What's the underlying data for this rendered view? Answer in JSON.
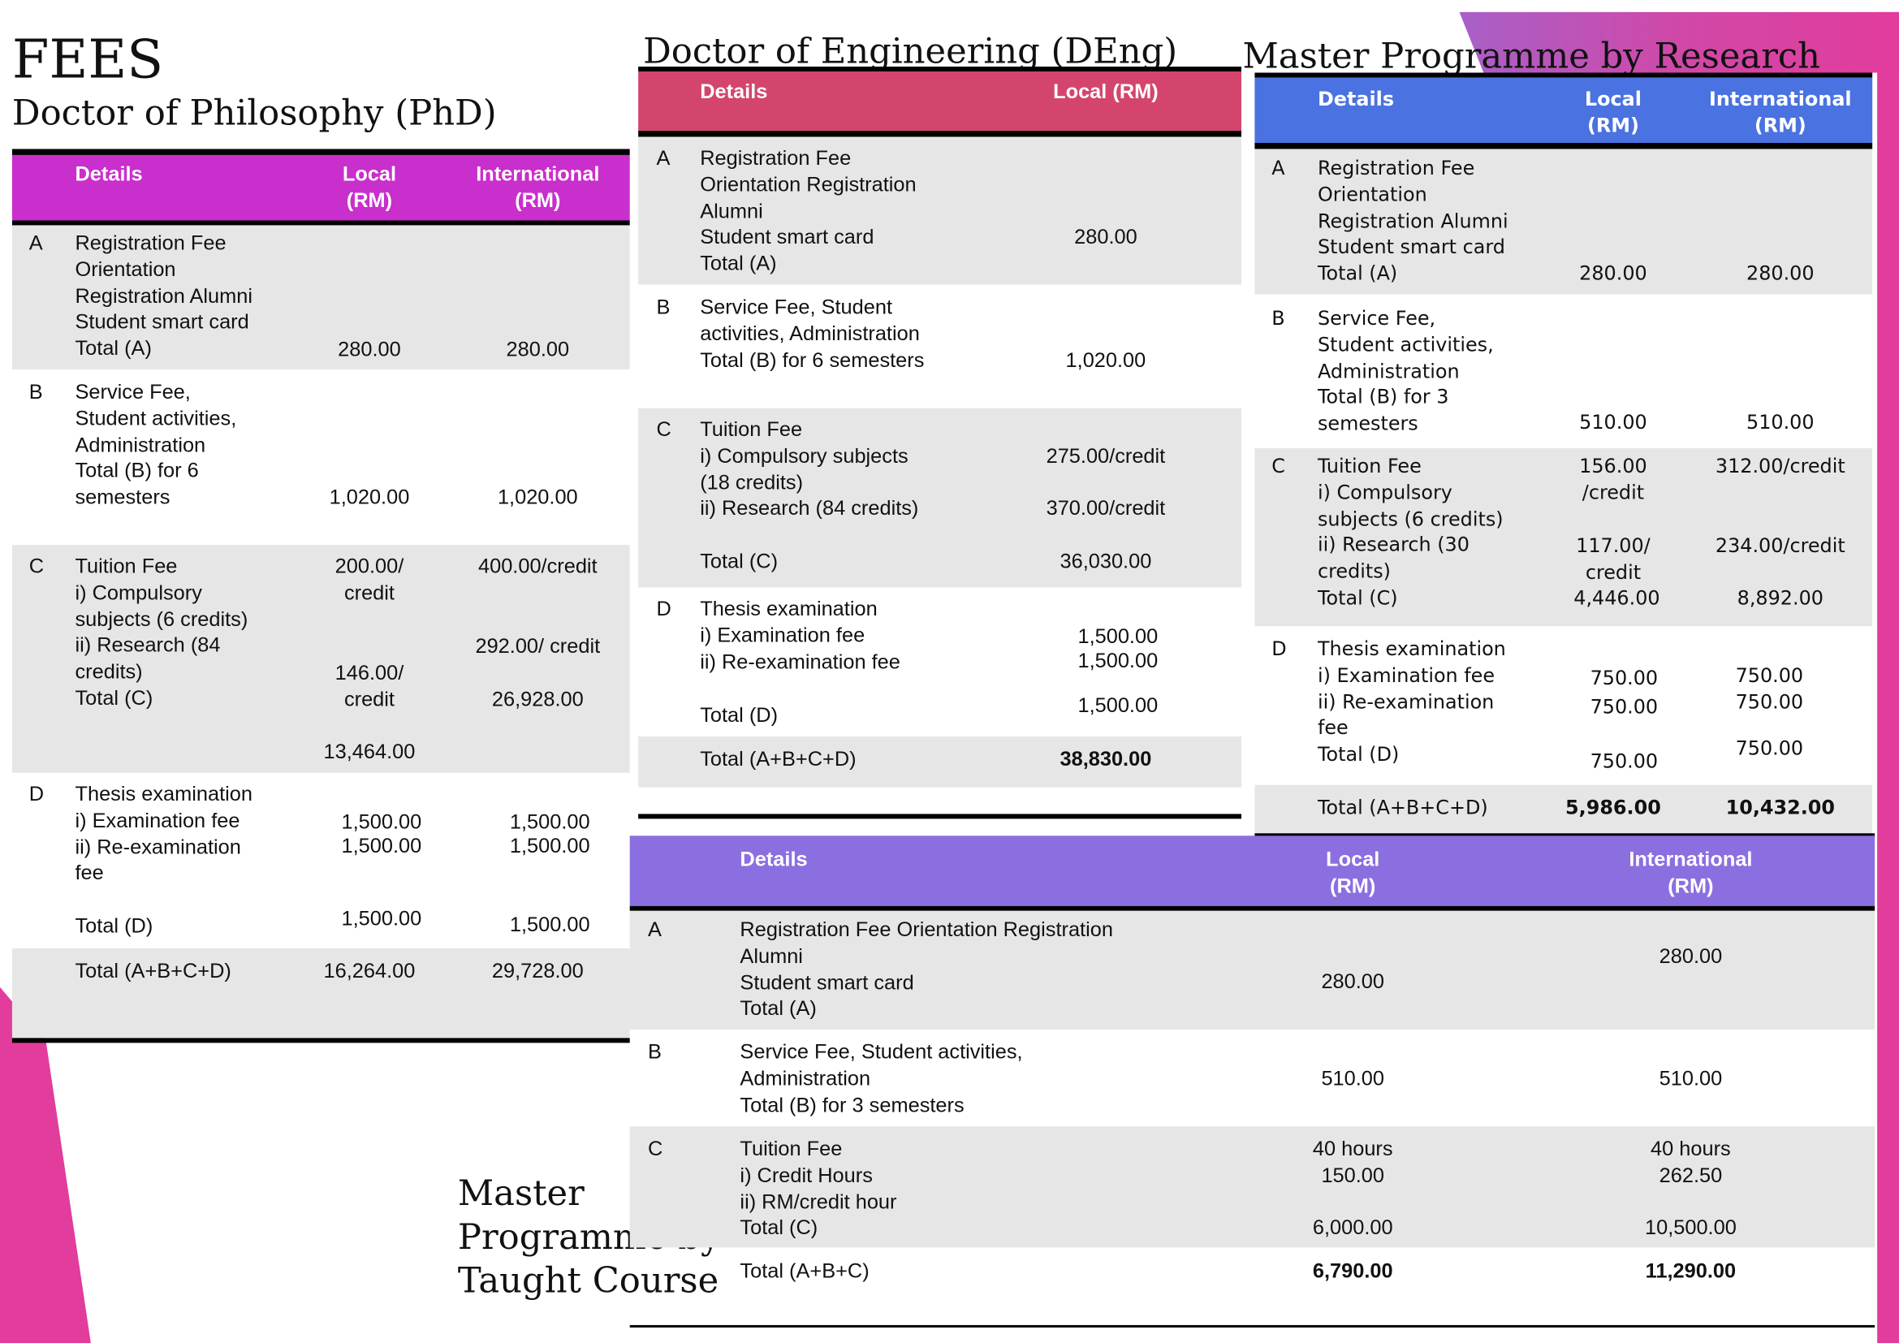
{
  "page": {
    "title": "FEES"
  },
  "colors": {
    "phd_header": "#c92fcc",
    "deng_header": "#d4456e",
    "mr_header": "#4a72e0",
    "taught_header": "#8b6fe0",
    "row_shade": "#e6e6e6",
    "accent_pink": "#e23c9c"
  },
  "phd": {
    "title": "Doctor of Philosophy (PhD)",
    "headers": {
      "details": "Details",
      "local": "Local\n(RM)",
      "intl": "International\n(RM)"
    },
    "rows": [
      {
        "letter": "A",
        "details": "Registration Fee\nOrientation\nRegistration Alumni\nStudent smart card\nTotal (A)",
        "local": [
          "280.00"
        ],
        "intl": [
          "280.00"
        ]
      },
      {
        "letter": "B",
        "details": "Service Fee,\nStudent activities,\nAdministration\nTotal (B) for 6\nsemesters",
        "local": [
          "1,020.00"
        ],
        "intl": [
          "1,020.00"
        ]
      },
      {
        "letter": "C",
        "details": "Tuition Fee\ni) Compulsory\nsubjects (6 credits)\nii) Research (84\ncredits)\nTotal (C)",
        "local": [
          "200.00/\ncredit",
          "146.00/\ncredit",
          "13,464.00"
        ],
        "intl": [
          "400.00/credit",
          "292.00/ credit",
          "26,928.00"
        ]
      },
      {
        "letter": "D",
        "details": "Thesis examination\ni) Examination fee\nii) Re-examination\nfee",
        "details_total": "Total (D)",
        "local": [
          "1,500.00\n1,500.00",
          "1,500.00"
        ],
        "intl": [
          "1,500.00\n1,500.00",
          "1,500.00"
        ]
      }
    ],
    "total": {
      "label": "Total (A+B+C+D)",
      "local": "16,264.00",
      "intl": "29,728.00"
    }
  },
  "deng": {
    "title": "Doctor of Engineering (DEng)",
    "headers": {
      "details": "Details",
      "local": "Local (RM)"
    },
    "rows": [
      {
        "letter": "A",
        "details": "Registration Fee\nOrientation Registration\nAlumni\nStudent smart card\nTotal (A)",
        "local": [
          "280.00"
        ]
      },
      {
        "letter": "B",
        "details": "Service Fee, Student\nactivities, Administration\nTotal (B) for 6 semesters",
        "local": [
          "1,020.00"
        ]
      },
      {
        "letter": "C",
        "details": "Tuition Fee\ni) Compulsory subjects\n(18 credits)\nii) Research (84 credits)",
        "details_total": "Total (C)",
        "local": [
          "275.00/credit",
          "370.00/credit",
          "36,030.00"
        ]
      },
      {
        "letter": "D",
        "details": "Thesis examination\ni) Examination fee\nii) Re-examination fee",
        "details_total": "Total (D)",
        "local": [
          "1,500.00\n1,500.00",
          "1,500.00"
        ]
      }
    ],
    "total": {
      "label": "Total (A+B+C+D)",
      "local": "38,830.00"
    }
  },
  "mr": {
    "title": "Master Programme by Research",
    "headers": {
      "details": "Details",
      "local": "Local\n(RM)",
      "intl": "International\n(RM)"
    },
    "rows": [
      {
        "letter": "A",
        "details": "Registration Fee\nOrientation\nRegistration Alumni\nStudent smart card\nTotal (A)",
        "local": [
          "280.00"
        ],
        "intl": [
          "280.00"
        ]
      },
      {
        "letter": "B",
        "details": "Service Fee,\nStudent activities,\nAdministration\nTotal (B) for 3\nsemesters",
        "local": [
          "510.00"
        ],
        "intl": [
          "510.00"
        ]
      },
      {
        "letter": "C",
        "details": "Tuition Fee\ni) Compulsory\nsubjects  (6 credits)\nii) Research (30\ncredits)\nTotal (C)",
        "local": [
          "156.00\n/credit",
          "117.00/\ncredit",
          "4,446.00"
        ],
        "intl": [
          "312.00/credit",
          "234.00/credit",
          "8,892.00"
        ]
      },
      {
        "letter": "D",
        "details": "Thesis examination\ni) Examination fee\nii) Re-examination\nfee\nTotal (D)",
        "local": [
          "750.00\n750.00",
          "750.00"
        ],
        "intl": [
          "750.00\n750.00",
          "750.00"
        ]
      }
    ],
    "total": {
      "label": "Total (A+B+C+D)",
      "local": "5,986.00",
      "intl": "10,432.00"
    }
  },
  "taught": {
    "title": "Master\nProgramme by\nTaught Course",
    "headers": {
      "details": "Details",
      "local": "Local\n(RM)",
      "intl": "International\n(RM)"
    },
    "rows": [
      {
        "letter": "A",
        "details": "Registration Fee Orientation Registration\nAlumni\nStudent smart card\nTotal (A)",
        "local": [
          "280.00"
        ],
        "intl": [
          "280.00"
        ]
      },
      {
        "letter": "B",
        "details": "Service Fee, Student activities,\nAdministration\nTotal (B) for 3 semesters",
        "local": [
          "510.00"
        ],
        "intl": [
          "510.00"
        ]
      },
      {
        "letter": "C",
        "details": "Tuition Fee\ni) Credit Hours\nii) RM/credit hour\nTotal (C)",
        "local": [
          "40 hours\n150.00",
          "6,000.00"
        ],
        "intl": [
          "40 hours\n262.50",
          "10,500.00"
        ]
      }
    ],
    "total": {
      "label": "Total (A+B+C)",
      "local": "6,790.00",
      "intl": "11,290.00"
    }
  }
}
